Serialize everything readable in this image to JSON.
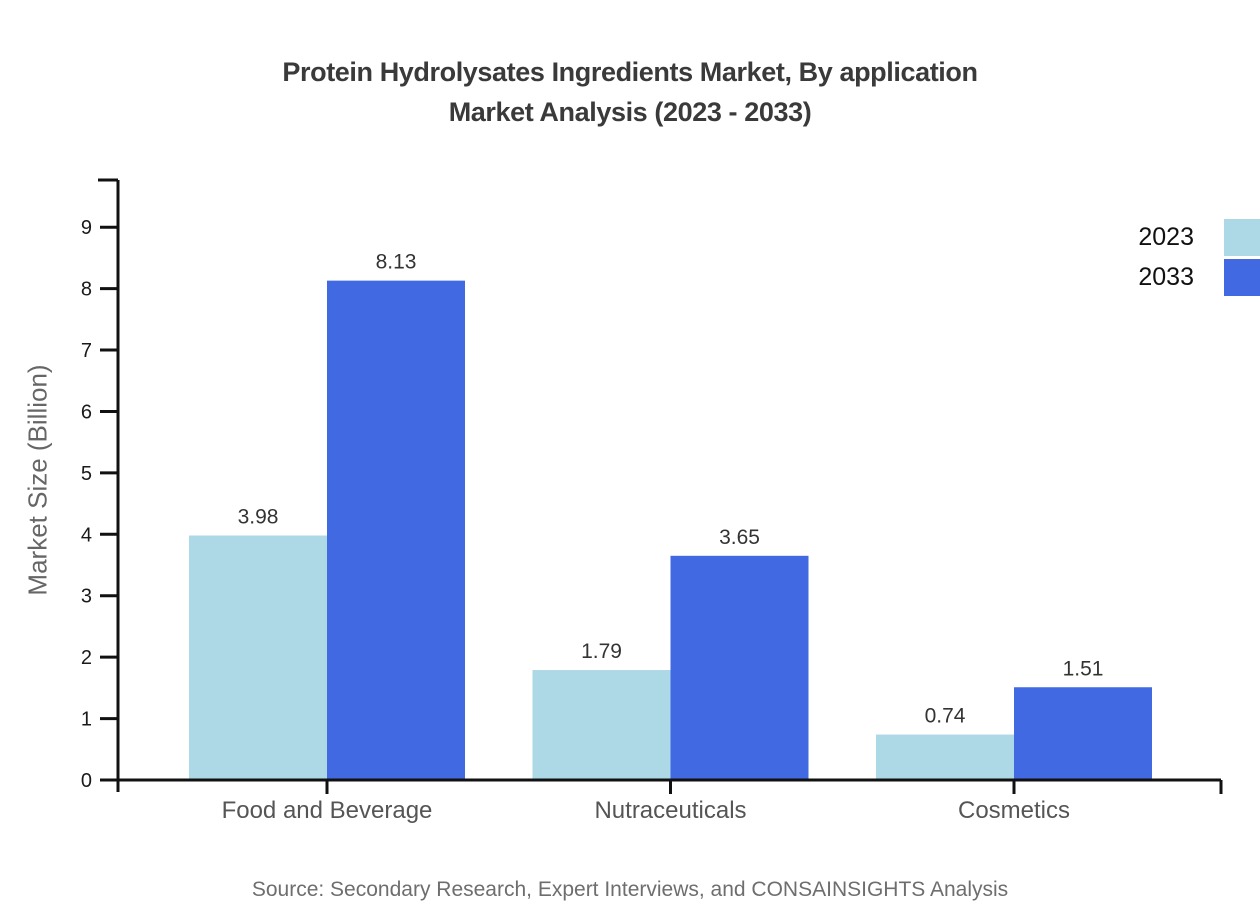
{
  "title": {
    "line1": "Protein Hydrolysates Ingredients Market, By application",
    "line2": "Market Analysis (2023 - 2033)"
  },
  "source": "Source: Secondary Research, Expert Interviews, and CONSAINSIGHTS Analysis",
  "chart_data": {
    "type": "bar",
    "title": "Protein Hydrolysates Ingredients Market, By application Market Analysis (2023 - 2033)",
    "categories": [
      "Food and Beverage",
      "Nutraceuticals",
      "Cosmetics"
    ],
    "series": [
      {
        "name": "2023",
        "color": "#ADD8E6",
        "values": [
          3.98,
          1.79,
          0.74
        ]
      },
      {
        "name": "2033",
        "color": "#4169E1",
        "values": [
          8.13,
          3.65,
          1.51
        ]
      }
    ],
    "xlabel": "",
    "ylabel": "Market Size (Billion)",
    "ylim": [
      0,
      9
    ],
    "yticks": [
      0,
      1,
      2,
      3,
      4,
      5,
      6,
      7,
      8,
      9
    ],
    "grid": false,
    "legend_position": "top-right",
    "value_labels": true
  },
  "colors": {
    "axis": "#111111",
    "title_text": "#3a3a3a",
    "tick_text": "#1a1a1a",
    "category_text": "#555555",
    "value_text": "#333333",
    "muted_text": "#6e6e6e"
  }
}
